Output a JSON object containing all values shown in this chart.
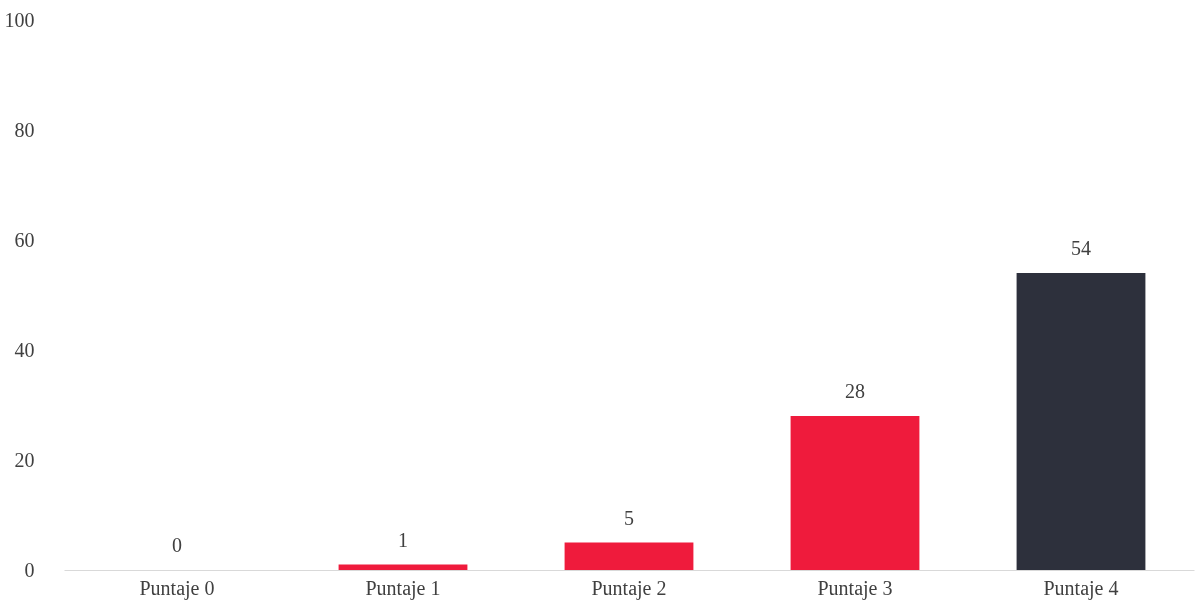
{
  "chart_data": {
    "type": "bar",
    "categories": [
      "Puntaje 0",
      "Puntaje 1",
      "Puntaje 2",
      "Puntaje 3",
      "Puntaje 4"
    ],
    "values": [
      0,
      1,
      5,
      28,
      54
    ],
    "colors": [
      "#ef1b3c",
      "#ef1b3c",
      "#ef1b3c",
      "#ef1b3c",
      "#2d303c"
    ],
    "ylim": [
      0,
      100
    ],
    "yticks": [
      0,
      20,
      40,
      60,
      80,
      100
    ],
    "data_labels": true,
    "grid": false
  }
}
